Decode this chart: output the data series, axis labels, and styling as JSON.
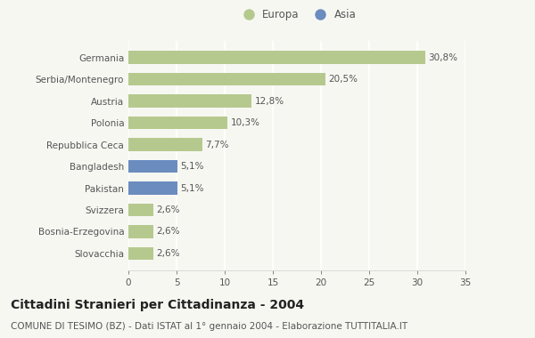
{
  "categories": [
    "Germania",
    "Serbia/Montenegro",
    "Austria",
    "Polonia",
    "Repubblica Ceca",
    "Bangladesh",
    "Pakistan",
    "Svizzera",
    "Bosnia-Erzegovina",
    "Slovacchia"
  ],
  "values": [
    30.8,
    20.5,
    12.8,
    10.3,
    7.7,
    5.1,
    5.1,
    2.6,
    2.6,
    2.6
  ],
  "labels": [
    "30,8%",
    "20,5%",
    "12,8%",
    "10,3%",
    "7,7%",
    "5,1%",
    "5,1%",
    "2,6%",
    "2,6%",
    "2,6%"
  ],
  "colors": [
    "#b5c98e",
    "#b5c98e",
    "#b5c98e",
    "#b5c98e",
    "#b5c98e",
    "#6b8cbf",
    "#6b8cbf",
    "#b5c98e",
    "#b5c98e",
    "#b5c98e"
  ],
  "legend_europa_color": "#b5c98e",
  "legend_asia_color": "#6b8cbf",
  "xlim": [
    0,
    35
  ],
  "xticks": [
    0,
    5,
    10,
    15,
    20,
    25,
    30,
    35
  ],
  "title": "Cittadini Stranieri per Cittadinanza - 2004",
  "subtitle": "COMUNE DI TESIMO (BZ) - Dati ISTAT al 1° gennaio 2004 - Elaborazione TUTTITALIA.IT",
  "bg_color": "#f7f7f2",
  "bar_height": 0.6,
  "title_fontsize": 10,
  "subtitle_fontsize": 7.5,
  "label_fontsize": 7.5,
  "tick_fontsize": 7.5,
  "legend_fontsize": 8.5
}
